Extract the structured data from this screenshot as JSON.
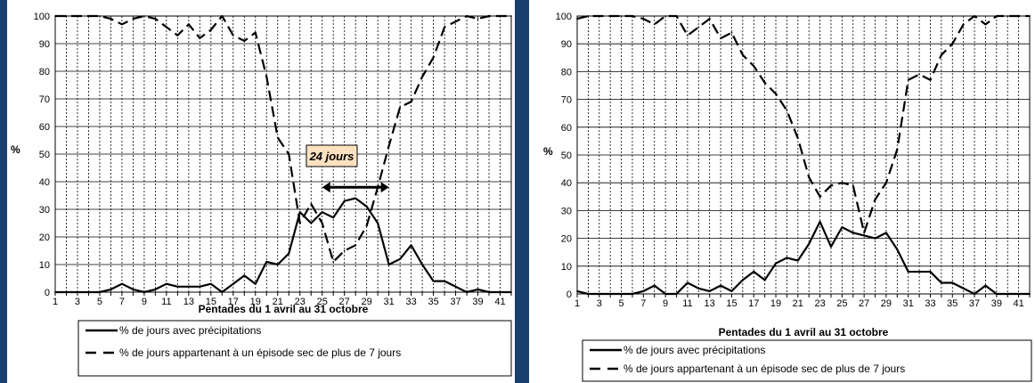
{
  "chart_data": [
    {
      "type": "line",
      "x": [
        1,
        2,
        3,
        4,
        5,
        6,
        7,
        8,
        9,
        10,
        11,
        12,
        13,
        14,
        15,
        16,
        17,
        18,
        19,
        20,
        21,
        22,
        23,
        24,
        25,
        26,
        27,
        28,
        29,
        30,
        31,
        32,
        33,
        34,
        35,
        36,
        37,
        38,
        39,
        40,
        41,
        42
      ],
      "xticks": [
        "1",
        "3",
        "5",
        "7",
        "9",
        "11",
        "13",
        "15",
        "17",
        "19",
        "21",
        "23",
        "25",
        "27",
        "29",
        "31",
        "33",
        "35",
        "37",
        "39",
        "41"
      ],
      "yticks": [
        "0",
        "10",
        "20",
        "30",
        "40",
        "50",
        "60",
        "70",
        "80",
        "90",
        "100"
      ],
      "ylim": [
        0,
        100
      ],
      "ylabel": "%",
      "xlabel": "Pentades du 1 avril au 31 octobre",
      "grid": true,
      "legend_position": "bottom",
      "annotation": {
        "text": "24 jours",
        "x_from": 25,
        "x_to": 31,
        "y": 38
      },
      "series": [
        {
          "name": "% de jours avec précipitations",
          "style": "solid",
          "values": [
            0,
            0,
            0,
            0,
            0,
            1,
            3,
            1,
            0,
            1,
            3,
            2,
            2,
            2,
            3,
            0,
            3,
            6,
            3,
            11,
            10,
            14,
            29,
            25,
            29,
            27,
            33,
            34,
            31,
            25,
            10,
            12,
            17,
            10,
            4,
            4,
            2,
            0,
            1,
            0,
            0,
            0
          ]
        },
        {
          "name": "% de jours appartenant à un épisode sec de plus de 7 jours",
          "style": "dashed",
          "values": [
            100,
            100,
            100,
            100,
            100,
            99,
            97,
            99,
            100,
            99,
            96,
            93,
            97,
            92,
            95,
            100,
            93,
            91,
            94,
            78,
            56,
            50,
            25,
            32,
            25,
            11,
            15,
            17,
            24,
            38,
            53,
            67,
            69,
            78,
            85,
            96,
            98,
            100,
            99,
            100,
            100,
            100
          ]
        }
      ]
    },
    {
      "type": "line",
      "x": [
        1,
        2,
        3,
        4,
        5,
        6,
        7,
        8,
        9,
        10,
        11,
        12,
        13,
        14,
        15,
        16,
        17,
        18,
        19,
        20,
        21,
        22,
        23,
        24,
        25,
        26,
        27,
        28,
        29,
        30,
        31,
        32,
        33,
        34,
        35,
        36,
        37,
        38,
        39,
        40,
        41,
        42
      ],
      "xticks": [
        "1",
        "3",
        "5",
        "7",
        "9",
        "11",
        "13",
        "15",
        "17",
        "19",
        "21",
        "23",
        "25",
        "27",
        "29",
        "31",
        "33",
        "35",
        "37",
        "39",
        "41"
      ],
      "yticks": [
        "0",
        "10",
        "20",
        "30",
        "40",
        "50",
        "60",
        "70",
        "80",
        "90",
        "100"
      ],
      "ylim": [
        0,
        100
      ],
      "ylabel": "%",
      "xlabel": "Pentades du 1 avril au 31 octobre",
      "grid": true,
      "legend_position": "bottom",
      "series": [
        {
          "name": "% de jours avec précipitations",
          "style": "solid",
          "values": [
            1,
            0,
            0,
            0,
            0,
            0,
            1,
            3,
            0,
            0,
            4,
            2,
            1,
            3,
            1,
            5,
            8,
            5,
            11,
            13,
            12,
            18,
            26,
            17,
            24,
            22,
            21,
            20,
            22,
            16,
            8,
            8,
            8,
            4,
            4,
            2,
            0,
            3,
            0,
            0,
            0,
            0
          ]
        },
        {
          "name": "% de jours appartenant à un épisode sec de plus de 7 jours",
          "style": "dashed",
          "values": [
            99,
            100,
            100,
            100,
            100,
            100,
            99,
            97,
            100,
            100,
            93,
            96,
            99,
            92,
            94,
            86,
            82,
            76,
            72,
            66,
            56,
            42,
            35,
            39,
            40,
            39,
            22,
            34,
            40,
            52,
            77,
            79,
            77,
            86,
            90,
            97,
            100,
            97,
            100,
            100,
            100,
            100
          ]
        }
      ]
    }
  ]
}
